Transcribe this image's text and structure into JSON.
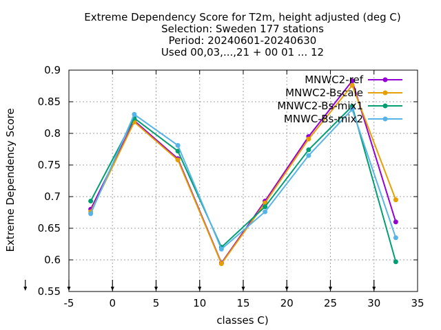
{
  "chart_data": {
    "type": "line",
    "title_lines": [
      "Extreme Dependency Score  for T2m, height adjusted (deg C)",
      "Selection: Sweden    177 stations",
      "Period: 20240601-20240630",
      "Used 00,03,...,21 + 00 01 ... 12"
    ],
    "xlabel": "classes C)",
    "ylabel": "Extreme Dependency Score",
    "xlim": [
      -5,
      35
    ],
    "ylim": [
      0.55,
      0.9
    ],
    "xticks": [
      "-5",
      "0",
      "5",
      "10",
      "15",
      "20",
      "25",
      "30",
      "35"
    ],
    "yticks": [
      "0.55",
      "0.6",
      "0.65",
      "0.7",
      "0.75",
      "0.8",
      "0.85",
      "0.9"
    ],
    "grid": true,
    "legend_position": "top-right",
    "x": [
      -2.5,
      2.5,
      7.5,
      12.5,
      17.5,
      22.5,
      27.5,
      32.5
    ],
    "arrow_markers_x": [
      -10,
      -5,
      0,
      5,
      10,
      15,
      20,
      25,
      30
    ],
    "series": [
      {
        "name": "MNWC2-ref",
        "color": "#9400d3",
        "values": [
          0.68,
          0.82,
          0.76,
          0.595,
          0.693,
          0.795,
          0.883,
          0.66
        ]
      },
      {
        "name": "MNWC2-Bscale",
        "color": "#e69f00",
        "values": [
          0.676,
          0.818,
          0.758,
          0.594,
          0.69,
          0.791,
          0.876,
          0.695
        ]
      },
      {
        "name": "MNWC2-Bs-mix1",
        "color": "#009e73",
        "values": [
          0.693,
          0.824,
          0.772,
          0.62,
          0.684,
          0.774,
          0.843,
          0.597
        ]
      },
      {
        "name": "MNWC-Bs-mix2",
        "color": "#56b4e9",
        "values": [
          0.673,
          0.83,
          0.781,
          0.617,
          0.676,
          0.765,
          0.838,
          0.635
        ]
      }
    ]
  }
}
